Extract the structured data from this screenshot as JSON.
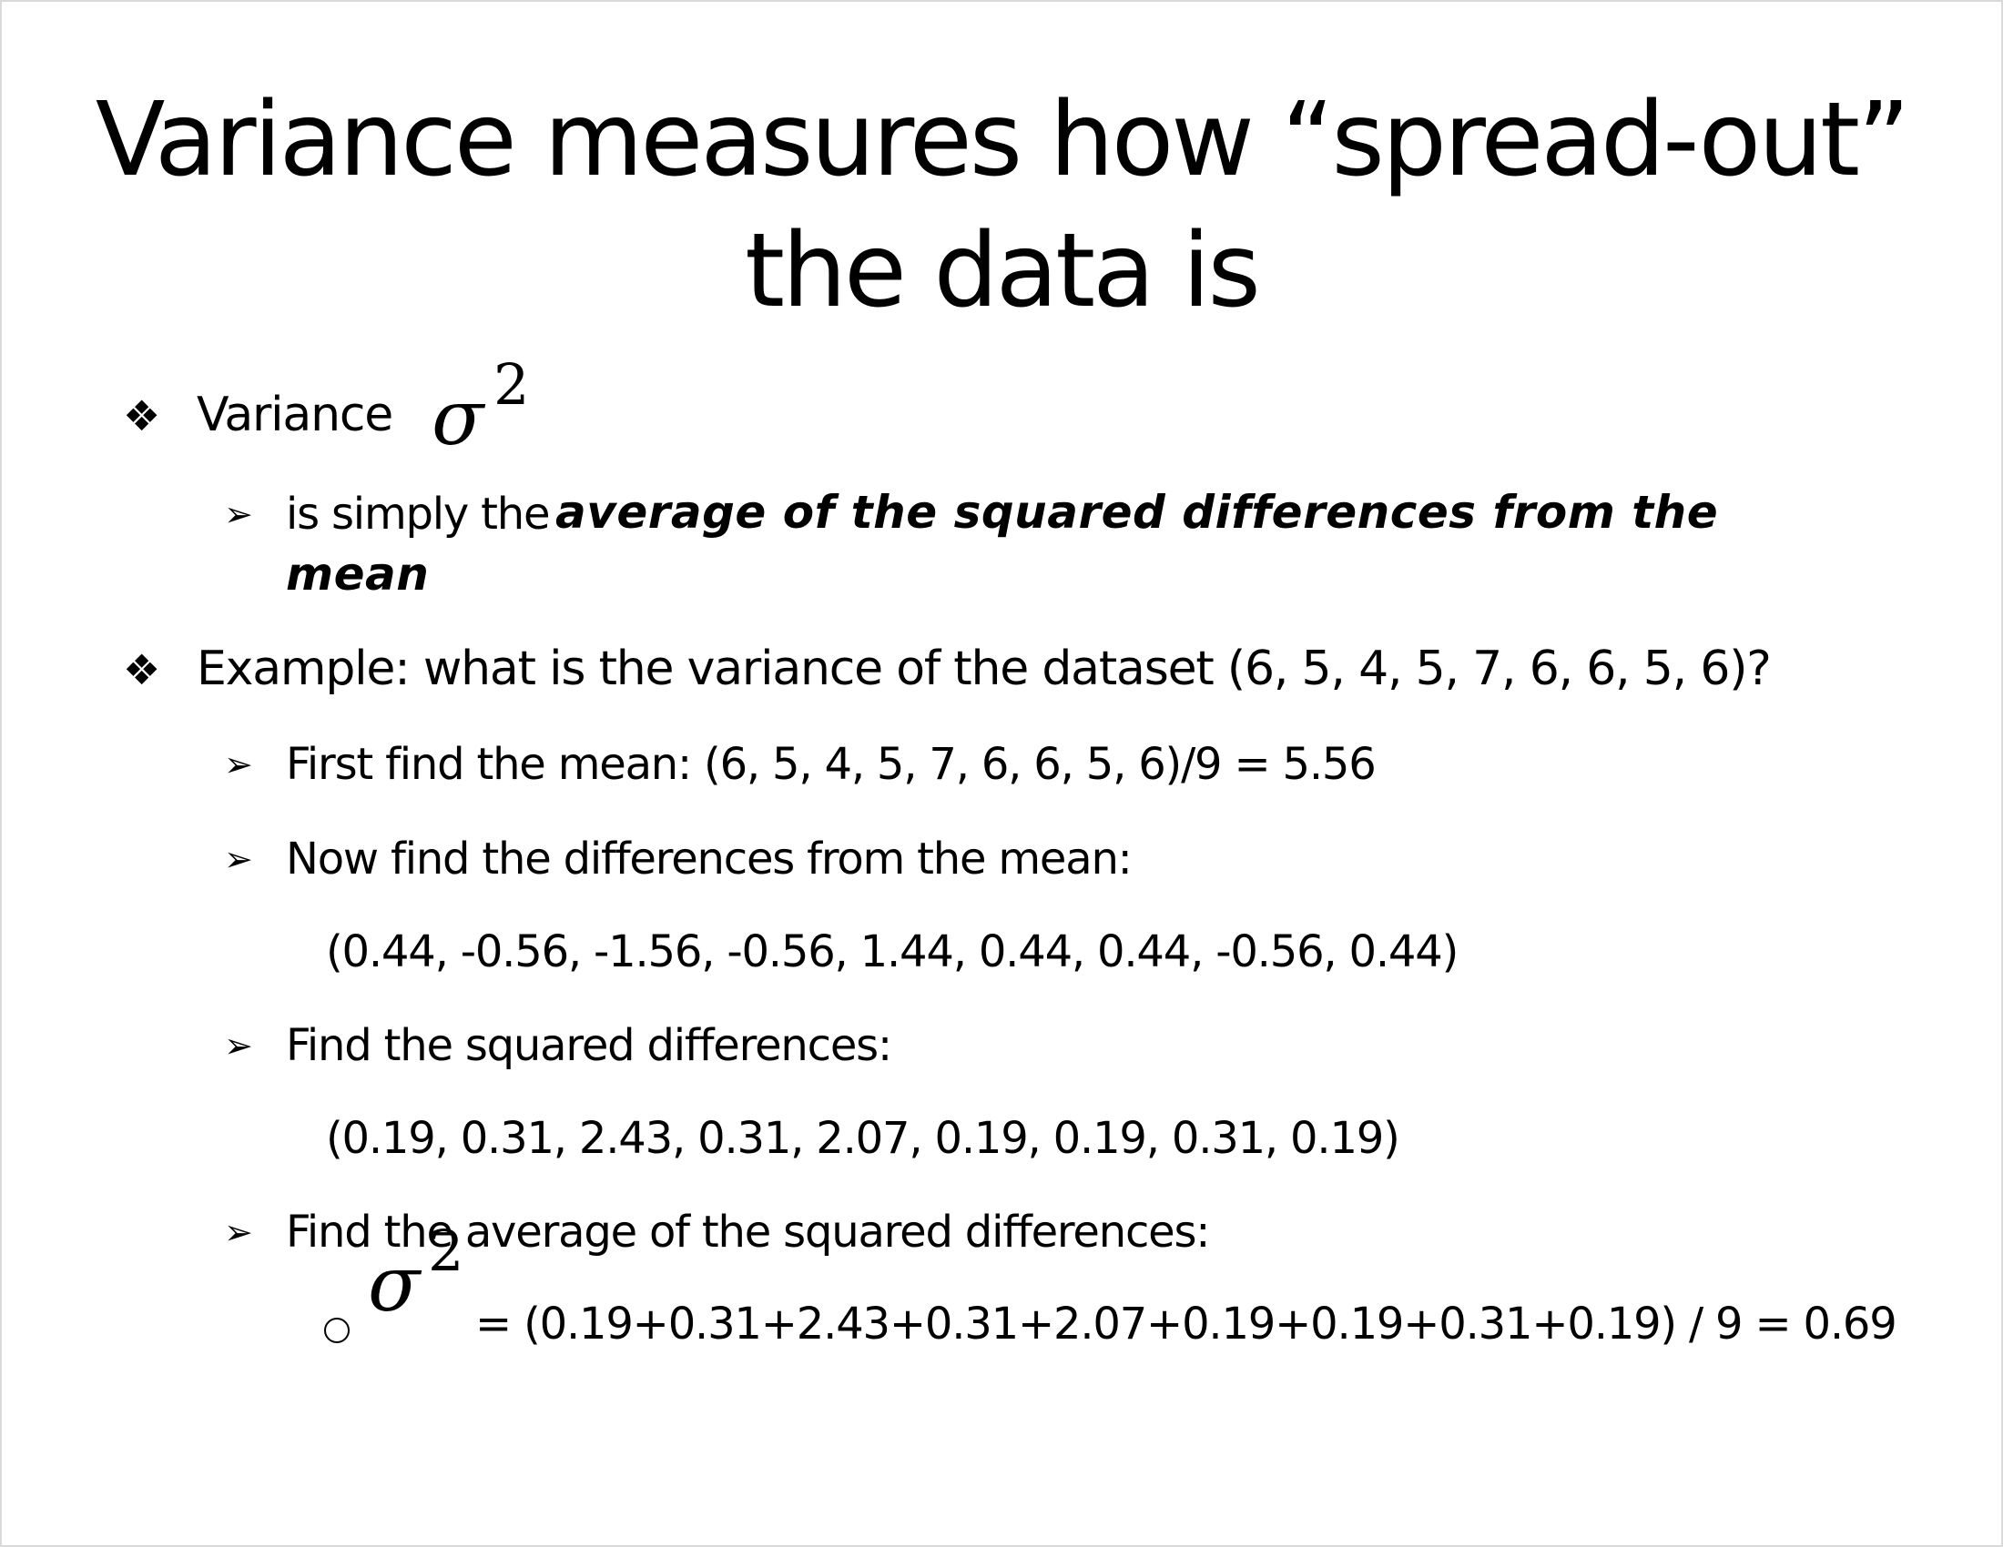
{
  "slide": {
    "title_line1": "Variance measures how “spread-out”",
    "title_line2": "the data is"
  },
  "bullets": {
    "diamond": "❖",
    "arrow": "➢",
    "circle": "o"
  },
  "variance": {
    "label": "Variance",
    "sigma": "σ",
    "power": "2",
    "def_prefix": "is simply the",
    "def_emphasis_1": "average of the squared differences from the",
    "def_emphasis_2": "mean"
  },
  "example": {
    "question": "Example: what is the variance of the dataset (6, 5, 4, 5, 7, 6, 6, 5, 6)?",
    "step1": "First find the mean: (6, 5, 4, 5, 7, 6, 6, 5, 6)/9 = 5.56",
    "step2": "Now find the differences from the mean:",
    "differences": "(0.44, -0.56, -1.56, -0.56, 1.44, 0.44, 0.44, -0.56, 0.44)",
    "step3": "Find the squared differences:",
    "squared": "(0.19, 0.31, 2.43, 0.31, 2.07, 0.19, 0.19, 0.31, 0.19)",
    "step4": "Find the average of the squared differences:",
    "result_sigma": "σ",
    "result_power": "2",
    "result": "= (0.19+0.31+2.43+0.31+2.07+0.19+0.19+0.31+0.19) / 9 = 0.69"
  }
}
